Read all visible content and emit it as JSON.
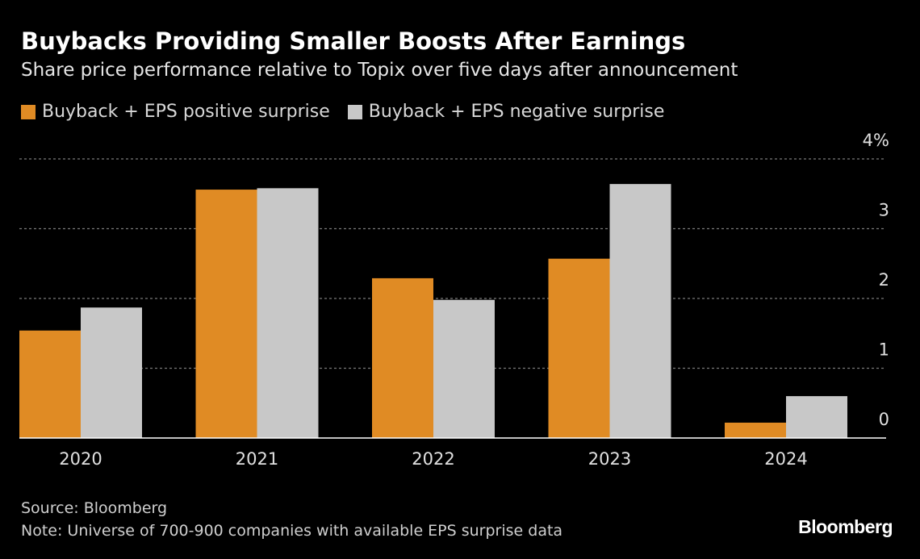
{
  "chart_data": {
    "type": "bar",
    "title": "Buybacks Providing Smaller Boosts After Earnings",
    "subtitle": "Share price performance relative to Topix over five days after announcement",
    "categories": [
      "2020",
      "2021",
      "2022",
      "2023",
      "2024"
    ],
    "series": [
      {
        "name": "Buyback + EPS positive surprise",
        "color": "#e08b24",
        "values": [
          1.54,
          3.56,
          2.29,
          2.57,
          0.22
        ]
      },
      {
        "name": "Buyback + EPS negative surprise",
        "color": "#c8c8c8",
        "values": [
          1.87,
          3.58,
          1.98,
          3.64,
          0.6
        ]
      }
    ],
    "y_ticks": [
      "0",
      "1",
      "2",
      "3",
      "4%"
    ],
    "ylim": [
      0,
      4
    ],
    "grid": true,
    "xlabel": "",
    "ylabel": "",
    "legend_position": "top-left"
  },
  "footer": {
    "source": "Source: Bloomberg",
    "note": "Note: Universe of 700-900 companies with available EPS surprise data",
    "logo": "Bloomberg"
  }
}
